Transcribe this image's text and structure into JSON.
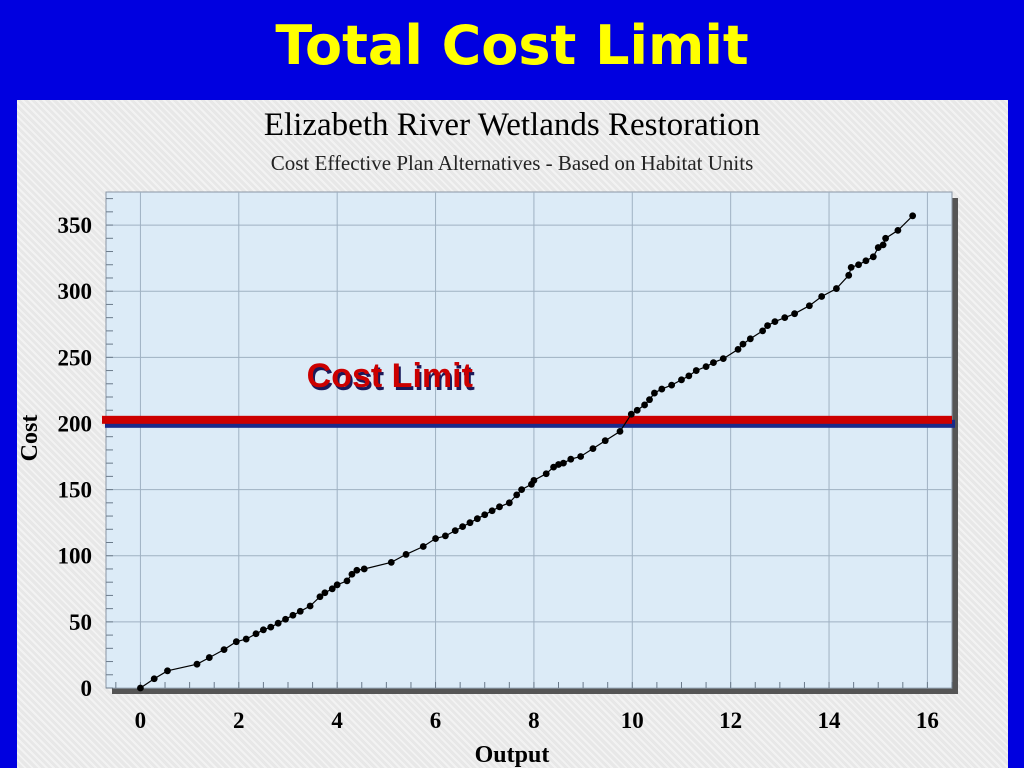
{
  "slide": {
    "title": "Total Cost Limit"
  },
  "colors": {
    "background": "#0000e0",
    "title": "#ffff00",
    "plot_area": "#dcebf7",
    "cost_limit_line": "#cc0000",
    "cost_limit_shadow": "#1a2a8a",
    "series": "#000000"
  },
  "chart_data": {
    "type": "scatter",
    "title": "Elizabeth River Wetlands Restoration",
    "subtitle": "Cost Effective Plan Alternatives - Based on Habitat Units",
    "xlabel": "Output",
    "ylabel": "Cost",
    "xlim": [
      -0.7,
      16.5
    ],
    "ylim": [
      0,
      375
    ],
    "xticks": [
      0,
      2,
      4,
      6,
      8,
      10,
      12,
      14,
      16
    ],
    "yticks": [
      0,
      50,
      100,
      150,
      200,
      250,
      300,
      350
    ],
    "grid": true,
    "connected": true,
    "reference_line": {
      "label": "Cost Limit",
      "y": 202
    },
    "series": [
      {
        "points": [
          [
            0,
            0
          ],
          [
            0.28,
            7
          ],
          [
            0.55,
            13
          ],
          [
            1.15,
            18
          ],
          [
            1.4,
            23
          ],
          [
            1.7,
            29
          ],
          [
            1.95,
            35
          ],
          [
            2.15,
            37
          ],
          [
            2.35,
            41
          ],
          [
            2.5,
            44
          ],
          [
            2.65,
            46
          ],
          [
            2.8,
            49
          ],
          [
            2.95,
            52
          ],
          [
            3.1,
            55
          ],
          [
            3.25,
            58
          ],
          [
            3.45,
            62
          ],
          [
            3.65,
            69
          ],
          [
            3.75,
            72
          ],
          [
            3.9,
            75
          ],
          [
            4.0,
            78
          ],
          [
            4.2,
            81
          ],
          [
            4.3,
            86
          ],
          [
            4.4,
            89
          ],
          [
            4.55,
            90
          ],
          [
            5.1,
            95
          ],
          [
            5.4,
            101
          ],
          [
            5.75,
            107
          ],
          [
            6.0,
            113
          ],
          [
            6.2,
            115
          ],
          [
            6.4,
            119
          ],
          [
            6.55,
            122
          ],
          [
            6.7,
            125
          ],
          [
            6.85,
            128
          ],
          [
            7.0,
            131
          ],
          [
            7.15,
            134
          ],
          [
            7.3,
            137
          ],
          [
            7.5,
            140
          ],
          [
            7.65,
            146
          ],
          [
            7.75,
            150
          ],
          [
            7.95,
            154
          ],
          [
            8.0,
            157
          ],
          [
            8.25,
            162
          ],
          [
            8.4,
            167
          ],
          [
            8.5,
            169
          ],
          [
            8.6,
            170
          ],
          [
            8.75,
            173
          ],
          [
            8.95,
            175
          ],
          [
            9.2,
            181
          ],
          [
            9.45,
            187
          ],
          [
            9.75,
            194
          ],
          [
            9.98,
            207
          ],
          [
            10.1,
            210
          ],
          [
            10.25,
            214
          ],
          [
            10.35,
            218
          ],
          [
            10.45,
            223
          ],
          [
            10.6,
            226
          ],
          [
            10.8,
            229
          ],
          [
            11.0,
            233
          ],
          [
            11.15,
            236
          ],
          [
            11.3,
            240
          ],
          [
            11.5,
            243
          ],
          [
            11.65,
            246
          ],
          [
            11.85,
            249
          ],
          [
            12.15,
            256
          ],
          [
            12.25,
            260
          ],
          [
            12.4,
            264
          ],
          [
            12.65,
            270
          ],
          [
            12.75,
            274
          ],
          [
            12.9,
            277
          ],
          [
            13.1,
            280
          ],
          [
            13.3,
            283
          ],
          [
            13.6,
            289
          ],
          [
            13.85,
            296
          ],
          [
            14.15,
            302
          ],
          [
            14.4,
            312
          ],
          [
            14.45,
            318
          ],
          [
            14.6,
            320
          ],
          [
            14.75,
            323
          ],
          [
            14.9,
            326
          ],
          [
            15.0,
            333
          ],
          [
            15.1,
            335
          ],
          [
            15.15,
            340
          ],
          [
            15.4,
            346
          ],
          [
            15.7,
            357
          ]
        ]
      }
    ]
  }
}
